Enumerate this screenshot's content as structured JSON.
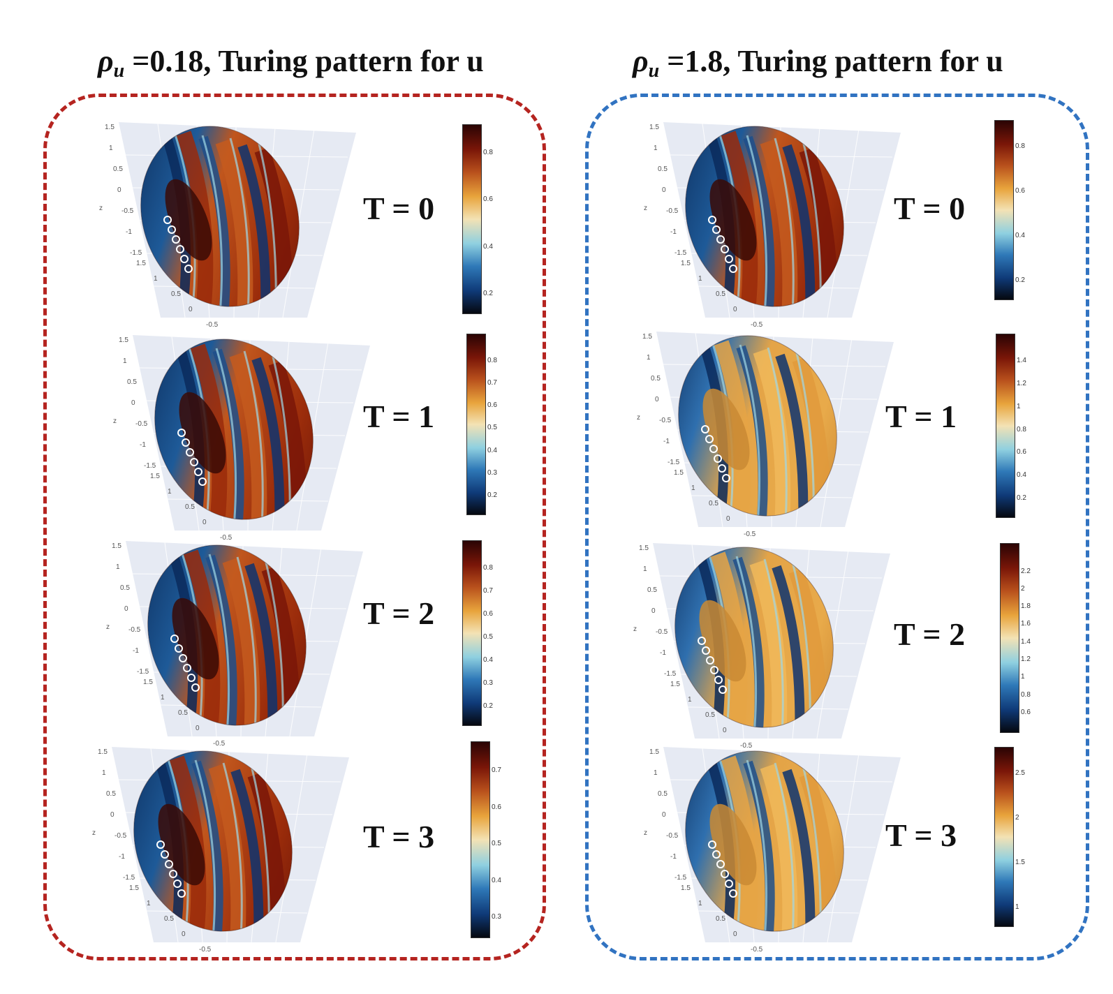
{
  "titles": {
    "left": {
      "rho": "ρ",
      "sub": "u",
      "rest": " =0.18, Turing pattern for u"
    },
    "right": {
      "rho": "ρ",
      "sub": "u",
      "rest": " =1.8, Turing pattern for u"
    }
  },
  "axes": {
    "z_label": "z",
    "z_ticks": [
      "1.5",
      "1",
      "0.5",
      "0",
      "-0.5",
      "-1",
      "-1.5"
    ],
    "y_ticks": [
      "1.5",
      "1",
      "0.5",
      "0",
      "-0.5"
    ]
  },
  "colors": {
    "left_border": "#b52420",
    "right_border": "#3173c1",
    "colormap": [
      "#05080f",
      "#0f3a78",
      "#2f79b8",
      "#8fd0e0",
      "#f3e2b4",
      "#e8a43c",
      "#b8501c",
      "#7a1608",
      "#2a0404"
    ]
  },
  "left": {
    "panels": [
      {
        "label": "T = 0",
        "ticks": [
          "0.8",
          "0.6",
          "0.4",
          "0.2"
        ]
      },
      {
        "label": "T = 1",
        "ticks": [
          "0.8",
          "0.7",
          "0.6",
          "0.5",
          "0.4",
          "0.3",
          "0.2"
        ]
      },
      {
        "label": "T = 2",
        "ticks": [
          "0.8",
          "0.7",
          "0.6",
          "0.5",
          "0.4",
          "0.3",
          "0.2"
        ]
      },
      {
        "label": "T = 3",
        "ticks": [
          "0.7",
          "0.6",
          "0.5",
          "0.4",
          "0.3"
        ]
      }
    ]
  },
  "right": {
    "panels": [
      {
        "label": "T = 0",
        "ticks": [
          "0.8",
          "0.6",
          "0.4",
          "0.2"
        ]
      },
      {
        "label": "T = 1",
        "ticks": [
          "1.4",
          "1.2",
          "1",
          "0.8",
          "0.6",
          "0.4",
          "0.2"
        ]
      },
      {
        "label": "T = 2",
        "ticks": [
          "2.2",
          "2",
          "1.8",
          "1.6",
          "1.4",
          "1.2",
          "1",
          "0.8",
          "0.6"
        ]
      },
      {
        "label": "T = 3",
        "ticks": [
          "2.5",
          "2",
          "1.5",
          "1"
        ]
      }
    ]
  }
}
